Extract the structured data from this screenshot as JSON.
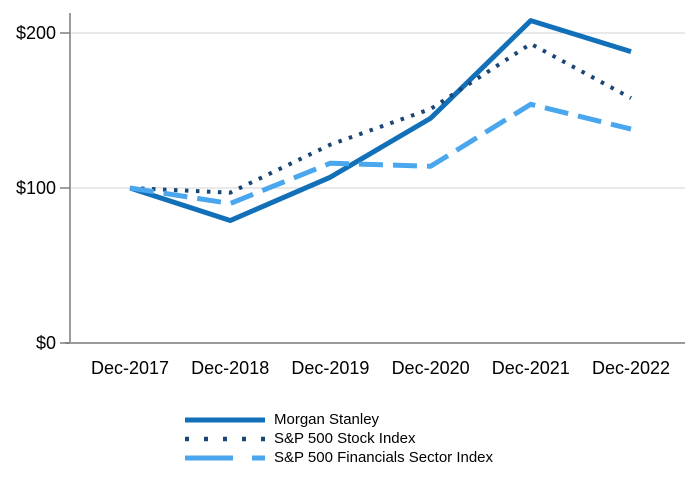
{
  "chart_data": {
    "type": "line",
    "x": [
      "Dec-2017",
      "Dec-2018",
      "Dec-2019",
      "Dec-2020",
      "Dec-2021",
      "Dec-2022"
    ],
    "series": [
      {
        "name": "Morgan Stanley",
        "style": "solid",
        "color": "#1270B8",
        "values": [
          100,
          79,
          107,
          145,
          208,
          188
        ]
      },
      {
        "name": "S&P 500 Stock Index",
        "style": "dotted",
        "color": "#1A4677",
        "values": [
          100,
          97,
          128,
          151,
          193,
          158
        ]
      },
      {
        "name": "S&P 500 Financials Sector Index",
        "style": "dashed",
        "color": "#4AA7EE",
        "values": [
          100,
          90,
          116,
          114,
          154,
          138
        ]
      }
    ],
    "yticks": [
      {
        "value": 0,
        "label": "$0"
      },
      {
        "value": 100,
        "label": "$100"
      },
      {
        "value": 200,
        "label": "$200"
      }
    ],
    "ylim": [
      0,
      213
    ],
    "grid": true,
    "legend_position": "bottom-left",
    "axis_color": "#9B9B9B",
    "tick_color": "#7F7F7F",
    "gridline_color": "#DCDCDC",
    "text_color": "#000000"
  }
}
